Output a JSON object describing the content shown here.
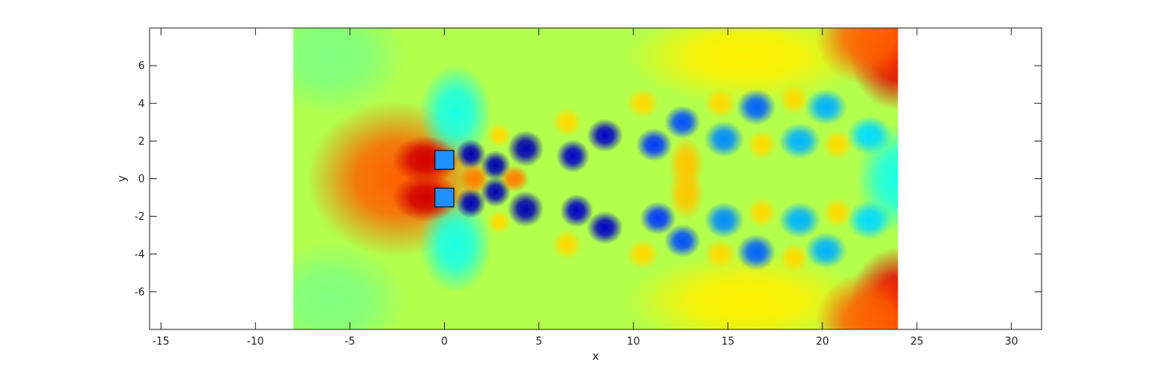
{
  "chart_data": {
    "type": "heatmap",
    "title": "",
    "xlabel": "x",
    "ylabel": "y",
    "xlim": [
      -15.6,
      31.6
    ],
    "ylim": [
      -8,
      8
    ],
    "xticks": [
      -15,
      -10,
      -5,
      0,
      5,
      10,
      15,
      20,
      25,
      30
    ],
    "yticks": [
      -6,
      -4,
      -2,
      0,
      2,
      4,
      6
    ],
    "xtick_labels": [
      "-15",
      "-10",
      "-5",
      "0",
      "5",
      "10",
      "15",
      "20",
      "25",
      "30"
    ],
    "ytick_labels": [
      "-6",
      "-4",
      "-2",
      "0",
      "2",
      "4",
      "6"
    ],
    "grid": false,
    "colormap": "jet",
    "field_extent": {
      "x": [
        -8,
        24
      ],
      "y": [
        -8,
        8
      ]
    },
    "background_level": 0.55,
    "obstacles": [
      {
        "name": "upper-cylinder",
        "x": [
          -0.5,
          0.5
        ],
        "y": [
          0.5,
          1.5
        ],
        "color": "#1e90ff"
      },
      {
        "name": "lower-cylinder",
        "x": [
          -0.5,
          0.5
        ],
        "y": [
          -1.5,
          -0.5
        ],
        "color": "#1e90ff"
      }
    ],
    "features": [
      {
        "x": -1.0,
        "y": 1.0,
        "level": 0.92,
        "sx": 1.1,
        "sy": 0.8
      },
      {
        "x": -1.0,
        "y": -1.0,
        "level": 0.92,
        "sx": 1.1,
        "sy": 0.8
      },
      {
        "x": -2.5,
        "y": 0.0,
        "level": 0.78,
        "sx": 3.0,
        "sy": 2.6
      },
      {
        "x": 1.4,
        "y": 1.3,
        "level": 0.05,
        "sx": 0.5,
        "sy": 0.5
      },
      {
        "x": 1.4,
        "y": -1.3,
        "level": 0.05,
        "sx": 0.5,
        "sy": 0.5
      },
      {
        "x": 2.7,
        "y": 0.7,
        "level": 0.05,
        "sx": 0.5,
        "sy": 0.5
      },
      {
        "x": 2.7,
        "y": -0.7,
        "level": 0.05,
        "sx": 0.5,
        "sy": 0.5
      },
      {
        "x": 4.3,
        "y": 1.6,
        "level": 0.05,
        "sx": 0.6,
        "sy": 0.6
      },
      {
        "x": 4.3,
        "y": -1.6,
        "level": 0.05,
        "sx": 0.6,
        "sy": 0.6
      },
      {
        "x": 6.8,
        "y": 1.2,
        "level": 0.07,
        "sx": 0.55,
        "sy": 0.55
      },
      {
        "x": 7.0,
        "y": -1.7,
        "level": 0.07,
        "sx": 0.55,
        "sy": 0.55
      },
      {
        "x": 8.5,
        "y": 2.3,
        "level": 0.07,
        "sx": 0.6,
        "sy": 0.55
      },
      {
        "x": 8.5,
        "y": -2.6,
        "level": 0.07,
        "sx": 0.6,
        "sy": 0.55
      },
      {
        "x": 11.1,
        "y": 1.8,
        "level": 0.18,
        "sx": 0.6,
        "sy": 0.55
      },
      {
        "x": 11.3,
        "y": -2.1,
        "level": 0.18,
        "sx": 0.6,
        "sy": 0.55
      },
      {
        "x": 12.6,
        "y": 3.0,
        "level": 0.2,
        "sx": 0.6,
        "sy": 0.55
      },
      {
        "x": 12.6,
        "y": -3.3,
        "level": 0.2,
        "sx": 0.6,
        "sy": 0.55
      },
      {
        "x": 14.8,
        "y": 2.1,
        "level": 0.26,
        "sx": 0.65,
        "sy": 0.6
      },
      {
        "x": 14.8,
        "y": -2.2,
        "level": 0.26,
        "sx": 0.65,
        "sy": 0.6
      },
      {
        "x": 16.5,
        "y": 3.8,
        "level": 0.22,
        "sx": 0.65,
        "sy": 0.6
      },
      {
        "x": 16.5,
        "y": -3.9,
        "level": 0.22,
        "sx": 0.65,
        "sy": 0.6
      },
      {
        "x": 18.8,
        "y": 2.0,
        "level": 0.3,
        "sx": 0.7,
        "sy": 0.6
      },
      {
        "x": 18.8,
        "y": -2.2,
        "level": 0.3,
        "sx": 0.7,
        "sy": 0.6
      },
      {
        "x": 20.2,
        "y": 3.8,
        "level": 0.3,
        "sx": 0.7,
        "sy": 0.6
      },
      {
        "x": 20.2,
        "y": -3.8,
        "level": 0.3,
        "sx": 0.7,
        "sy": 0.6
      },
      {
        "x": 22.5,
        "y": 2.3,
        "level": 0.34,
        "sx": 0.75,
        "sy": 0.65
      },
      {
        "x": 22.5,
        "y": -2.2,
        "level": 0.34,
        "sx": 0.75,
        "sy": 0.65
      },
      {
        "x": 1.6,
        "y": 0.0,
        "level": 0.75,
        "sx": 0.5,
        "sy": 0.5
      },
      {
        "x": 3.7,
        "y": 0.0,
        "level": 0.75,
        "sx": 0.5,
        "sy": 0.45
      },
      {
        "x": 2.9,
        "y": 2.3,
        "level": 0.66,
        "sx": 0.4,
        "sy": 0.4
      },
      {
        "x": 2.9,
        "y": -2.3,
        "level": 0.66,
        "sx": 0.4,
        "sy": 0.4
      },
      {
        "x": 6.5,
        "y": 3.0,
        "level": 0.66,
        "sx": 0.5,
        "sy": 0.5
      },
      {
        "x": 6.5,
        "y": -3.5,
        "level": 0.66,
        "sx": 0.5,
        "sy": 0.5
      },
      {
        "x": 10.5,
        "y": 4.0,
        "level": 0.66,
        "sx": 0.55,
        "sy": 0.5
      },
      {
        "x": 10.5,
        "y": -4.0,
        "level": 0.66,
        "sx": 0.55,
        "sy": 0.5
      },
      {
        "x": 12.8,
        "y": 0.8,
        "level": 0.68,
        "sx": 0.6,
        "sy": 0.9
      },
      {
        "x": 12.8,
        "y": -0.8,
        "level": 0.68,
        "sx": 0.6,
        "sy": 0.9
      },
      {
        "x": 14.6,
        "y": 4.0,
        "level": 0.66,
        "sx": 0.55,
        "sy": 0.5
      },
      {
        "x": 14.6,
        "y": -4.0,
        "level": 0.66,
        "sx": 0.55,
        "sy": 0.5
      },
      {
        "x": 16.8,
        "y": 1.8,
        "level": 0.66,
        "sx": 0.5,
        "sy": 0.5
      },
      {
        "x": 16.8,
        "y": -1.8,
        "level": 0.66,
        "sx": 0.5,
        "sy": 0.5
      },
      {
        "x": 18.5,
        "y": 4.2,
        "level": 0.66,
        "sx": 0.5,
        "sy": 0.5
      },
      {
        "x": 18.5,
        "y": -4.2,
        "level": 0.66,
        "sx": 0.5,
        "sy": 0.5
      },
      {
        "x": 20.8,
        "y": 1.8,
        "level": 0.66,
        "sx": 0.5,
        "sy": 0.5
      },
      {
        "x": 20.8,
        "y": -1.8,
        "level": 0.66,
        "sx": 0.5,
        "sy": 0.5
      },
      {
        "x": 0.6,
        "y": 3.5,
        "level": 0.4,
        "sx": 1.2,
        "sy": 1.6
      },
      {
        "x": 0.6,
        "y": -3.5,
        "level": 0.4,
        "sx": 1.2,
        "sy": 1.6
      },
      {
        "x": 24.0,
        "y": 6.5,
        "level": 0.9,
        "sx": 1.6,
        "sy": 1.8
      },
      {
        "x": 24.0,
        "y": -6.5,
        "level": 0.9,
        "sx": 1.6,
        "sy": 1.8
      },
      {
        "x": 22.5,
        "y": 7.5,
        "level": 0.78,
        "sx": 1.8,
        "sy": 1.6
      },
      {
        "x": 22.5,
        "y": -7.5,
        "level": 0.78,
        "sx": 1.8,
        "sy": 1.6
      },
      {
        "x": 24.0,
        "y": 0.0,
        "level": 0.4,
        "sx": 1.4,
        "sy": 1.8
      },
      {
        "x": 16.0,
        "y": 6.5,
        "level": 0.64,
        "sx": 4.0,
        "sy": 1.6
      },
      {
        "x": 16.0,
        "y": -6.5,
        "level": 0.64,
        "sx": 4.0,
        "sy": 1.6
      },
      {
        "x": -6.0,
        "y": 6.5,
        "level": 0.5,
        "sx": 2.5,
        "sy": 2.0
      },
      {
        "x": -6.0,
        "y": -6.5,
        "level": 0.5,
        "sx": 2.5,
        "sy": 2.0
      }
    ]
  }
}
